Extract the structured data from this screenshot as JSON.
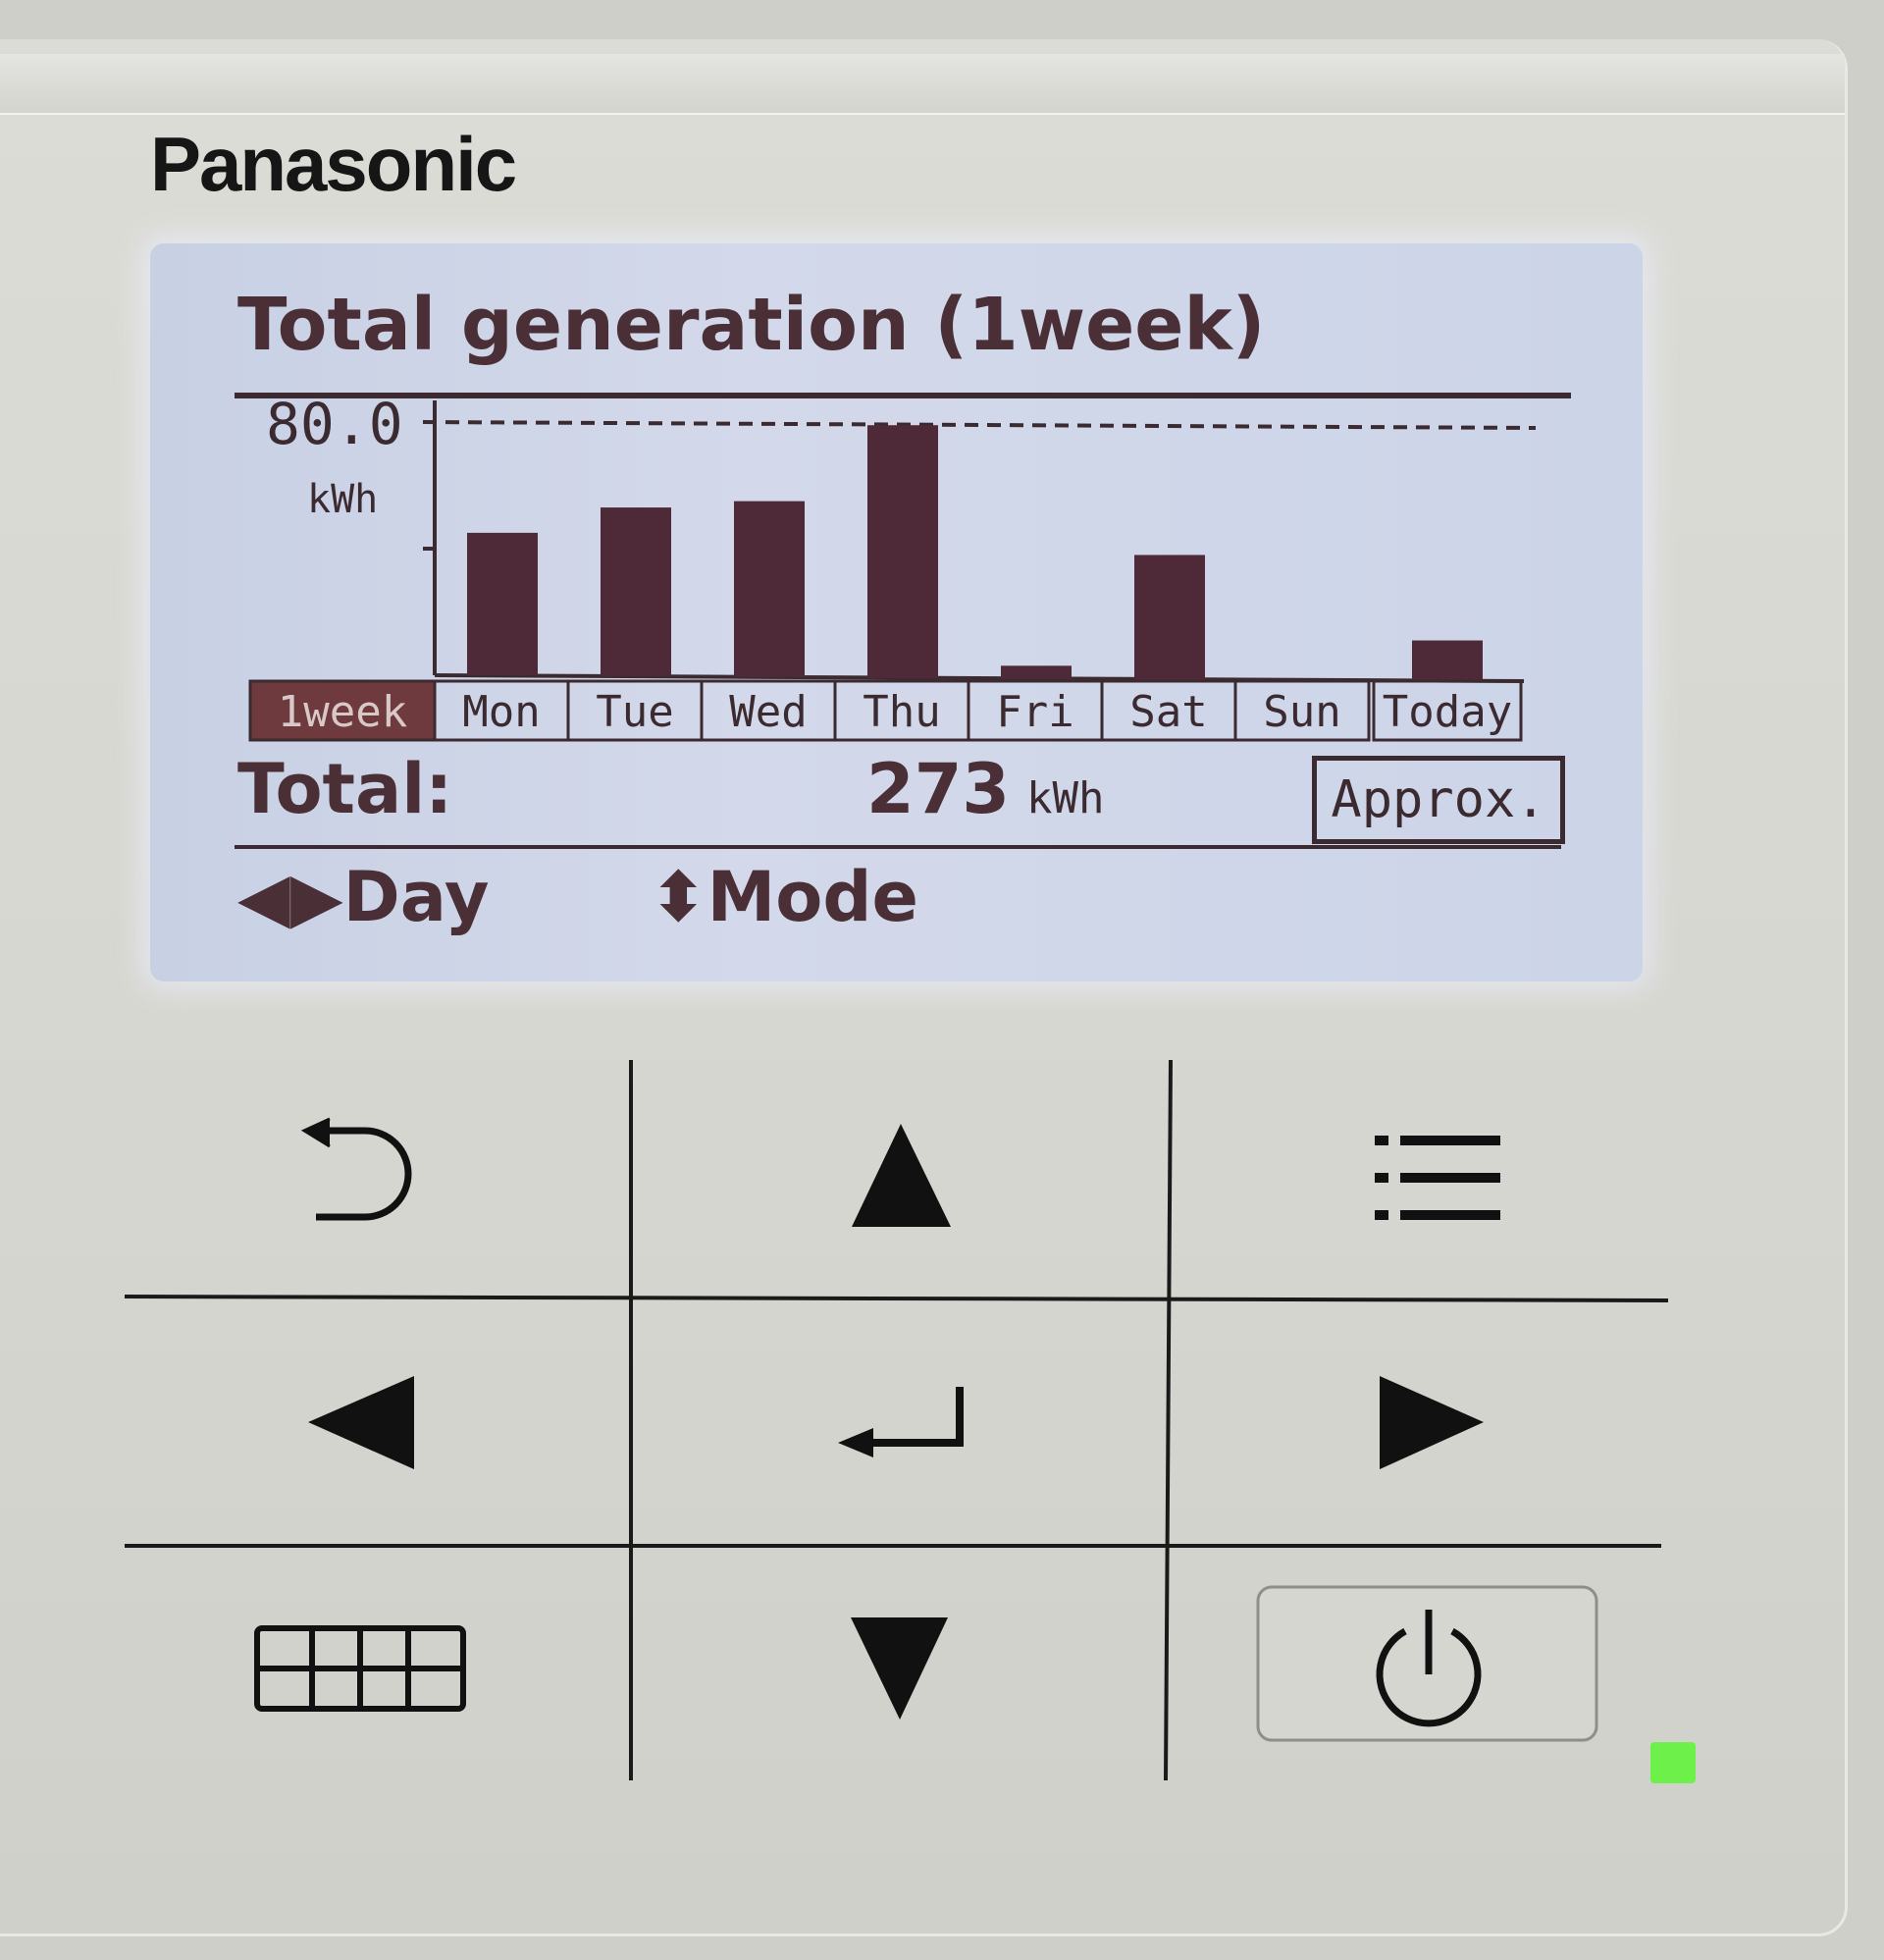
{
  "brand": "Panasonic",
  "screen": {
    "title": "Total generation (1week)",
    "total_label": "Total:",
    "total_value": "273",
    "total_unit": "kWh",
    "approx_label": "Approx.",
    "nav_day": "◀▶Day",
    "nav_mode": "⬍Mode"
  },
  "chart_data": {
    "type": "bar",
    "title": "Total generation (1week)",
    "ylabel": "kWh",
    "ymax_label": "80.0",
    "ylim": [
      0,
      80
    ],
    "reference_line": 80,
    "selected_tab": "1week",
    "tabs": [
      "1week",
      "Mon",
      "Tue",
      "Wed",
      "Thu",
      "Fri",
      "Sat",
      "Sun",
      "Today"
    ],
    "categories": [
      "Mon",
      "Tue",
      "Wed",
      "Thu",
      "Fri",
      "Sat",
      "Sun",
      "Today"
    ],
    "values": [
      45,
      53,
      55,
      79,
      3,
      38,
      0,
      11
    ],
    "bar_color": "#4e2a38"
  },
  "keypad": {
    "buttons": [
      "back-button",
      "up-button",
      "menu-button",
      "left-button",
      "enter-button",
      "right-button",
      "timer-button",
      "down-button",
      "power-button"
    ],
    "led_color": "#6ef04a"
  }
}
